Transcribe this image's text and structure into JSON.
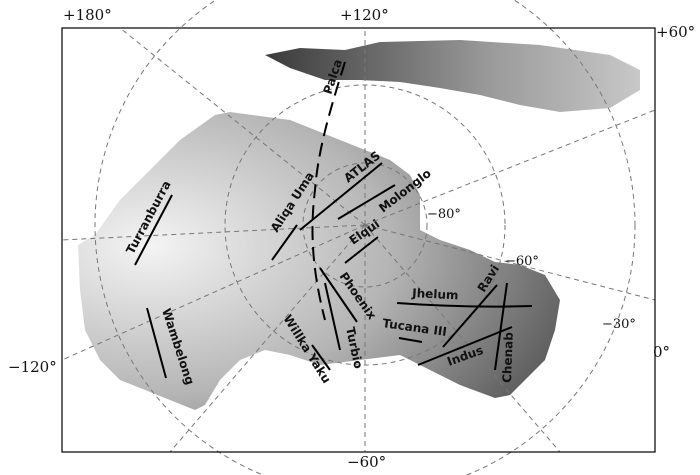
{
  "axis_labels": {
    "top_left": "+180°",
    "top_center": "+120°",
    "top_right": "+60°",
    "left": "−120°",
    "bottom": "−60°",
    "right_lower": "0°",
    "inner_80": "−80°",
    "inner_60": "−60°",
    "inner_30": "−30°"
  },
  "streams": [
    {
      "name": "Palca",
      "style": "dashed"
    },
    {
      "name": "ATLAS"
    },
    {
      "name": "Molonglo"
    },
    {
      "name": "Aliqa Uma"
    },
    {
      "name": "Elqui"
    },
    {
      "name": "Turranburra"
    },
    {
      "name": "Wambelong"
    },
    {
      "name": "Phoenix"
    },
    {
      "name": "Turbio"
    },
    {
      "name": "Willka Yaku"
    },
    {
      "name": "Jhelum"
    },
    {
      "name": "Tucana III"
    },
    {
      "name": "Ravi"
    },
    {
      "name": "Indus"
    },
    {
      "name": "Chenab"
    }
  ],
  "colors": {
    "footprint_light": "#f2f2f2",
    "footprint_dark": "#555555",
    "stream": "#000000",
    "grid": "#777777"
  }
}
